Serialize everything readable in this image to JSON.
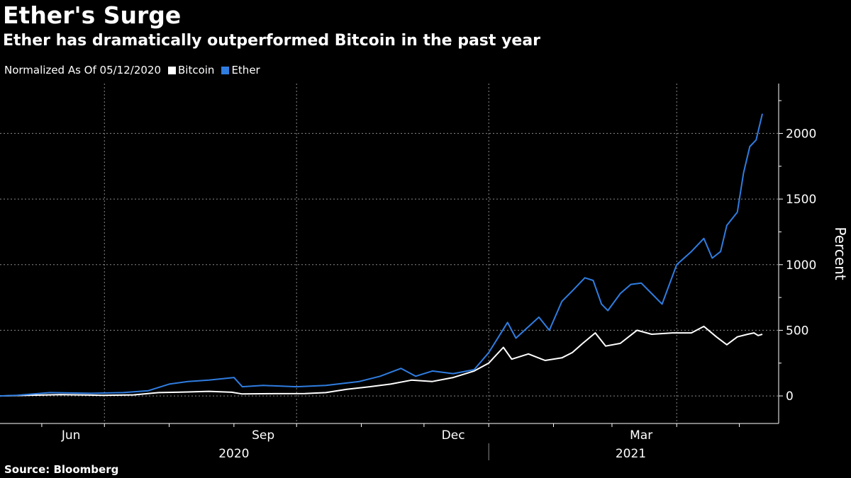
{
  "title": "Ether's Surge",
  "subtitle": "Ether has dramatically outperformed Bitcoin in the past year",
  "legend": {
    "note": "Normalized As Of 05/12/2020",
    "items": [
      {
        "label": "Bitcoin",
        "color": "#ffffff"
      },
      {
        "label": "Ether",
        "color": "#2f7de1"
      }
    ]
  },
  "source": "Source: Bloomberg",
  "chart_data": {
    "type": "line",
    "ylabel": "Percent",
    "ylim": [
      -210,
      2380
    ],
    "xlim": [
      "2020-05-12",
      "2021-05-12"
    ],
    "yticks": [
      0,
      500,
      1000,
      1500,
      2000
    ],
    "xticks_months": [
      {
        "date": "2020-06-15",
        "label": "Jun"
      },
      {
        "date": "2020-09-15",
        "label": "Sep"
      },
      {
        "date": "2020-12-15",
        "label": "Dec"
      },
      {
        "date": "2021-03-15",
        "label": "Mar"
      }
    ],
    "xticks_years": [
      {
        "label": "2020",
        "center": "2020-09-01"
      },
      {
        "label": "2021",
        "center": "2021-03-10"
      }
    ],
    "grid": true,
    "legend_position": "top-left",
    "series": [
      {
        "name": "Bitcoin",
        "color": "#ffffff",
        "points": [
          [
            "2020-05-12",
            0
          ],
          [
            "2020-05-25",
            5
          ],
          [
            "2020-06-10",
            10
          ],
          [
            "2020-06-30",
            5
          ],
          [
            "2020-07-15",
            8
          ],
          [
            "2020-07-27",
            25
          ],
          [
            "2020-08-10",
            30
          ],
          [
            "2020-08-20",
            35
          ],
          [
            "2020-08-31",
            28
          ],
          [
            "2020-09-05",
            15
          ],
          [
            "2020-09-20",
            17
          ],
          [
            "2020-10-05",
            18
          ],
          [
            "2020-10-15",
            25
          ],
          [
            "2020-10-25",
            50
          ],
          [
            "2020-11-05",
            70
          ],
          [
            "2020-11-15",
            90
          ],
          [
            "2020-11-25",
            120
          ],
          [
            "2020-12-05",
            110
          ],
          [
            "2020-12-15",
            140
          ],
          [
            "2020-12-25",
            190
          ],
          [
            "2021-01-01",
            250
          ],
          [
            "2021-01-08",
            370
          ],
          [
            "2021-01-12",
            280
          ],
          [
            "2021-01-20",
            320
          ],
          [
            "2021-01-28",
            270
          ],
          [
            "2021-02-05",
            290
          ],
          [
            "2021-02-10",
            330
          ],
          [
            "2021-02-15",
            400
          ],
          [
            "2021-02-21",
            480
          ],
          [
            "2021-02-26",
            380
          ],
          [
            "2021-03-05",
            400
          ],
          [
            "2021-03-13",
            500
          ],
          [
            "2021-03-20",
            470
          ],
          [
            "2021-03-30",
            480
          ],
          [
            "2021-04-08",
            480
          ],
          [
            "2021-04-14",
            530
          ],
          [
            "2021-04-20",
            450
          ],
          [
            "2021-04-25",
            390
          ],
          [
            "2021-04-30",
            450
          ],
          [
            "2021-05-05",
            470
          ],
          [
            "2021-05-08",
            480
          ],
          [
            "2021-05-10",
            460
          ],
          [
            "2021-05-12",
            470
          ]
        ]
      },
      {
        "name": "Ether",
        "color": "#2f7de1",
        "points": [
          [
            "2020-05-12",
            0
          ],
          [
            "2020-05-20",
            5
          ],
          [
            "2020-06-05",
            25
          ],
          [
            "2020-06-25",
            20
          ],
          [
            "2020-07-10",
            25
          ],
          [
            "2020-07-22",
            40
          ],
          [
            "2020-08-01",
            90
          ],
          [
            "2020-08-10",
            110
          ],
          [
            "2020-08-20",
            120
          ],
          [
            "2020-09-01",
            140
          ],
          [
            "2020-09-05",
            70
          ],
          [
            "2020-09-15",
            80
          ],
          [
            "2020-10-01",
            70
          ],
          [
            "2020-10-15",
            80
          ],
          [
            "2020-10-31",
            110
          ],
          [
            "2020-11-10",
            150
          ],
          [
            "2020-11-20",
            210
          ],
          [
            "2020-11-27",
            150
          ],
          [
            "2020-12-05",
            190
          ],
          [
            "2020-12-15",
            170
          ],
          [
            "2020-12-25",
            200
          ],
          [
            "2021-01-01",
            330
          ],
          [
            "2021-01-10",
            560
          ],
          [
            "2021-01-14",
            440
          ],
          [
            "2021-01-25",
            600
          ],
          [
            "2021-01-30",
            500
          ],
          [
            "2021-02-05",
            720
          ],
          [
            "2021-02-10",
            800
          ],
          [
            "2021-02-16",
            900
          ],
          [
            "2021-02-20",
            880
          ],
          [
            "2021-02-24",
            700
          ],
          [
            "2021-02-27",
            650
          ],
          [
            "2021-03-05",
            780
          ],
          [
            "2021-03-10",
            850
          ],
          [
            "2021-03-15",
            860
          ],
          [
            "2021-03-20",
            780
          ],
          [
            "2021-03-25",
            700
          ],
          [
            "2021-04-01",
            1000
          ],
          [
            "2021-04-08",
            1100
          ],
          [
            "2021-04-14",
            1200
          ],
          [
            "2021-04-18",
            1050
          ],
          [
            "2021-04-22",
            1100
          ],
          [
            "2021-04-25",
            1300
          ],
          [
            "2021-04-30",
            1400
          ],
          [
            "2021-05-03",
            1700
          ],
          [
            "2021-05-06",
            1900
          ],
          [
            "2021-05-09",
            1950
          ],
          [
            "2021-05-12",
            2150
          ]
        ]
      }
    ]
  }
}
